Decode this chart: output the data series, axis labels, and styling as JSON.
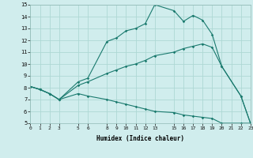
{
  "xlabel": "Humidex (Indice chaleur)",
  "background_color": "#d0eded",
  "grid_color": "#aed8d4",
  "line_color": "#1a7a6e",
  "line1_x": [
    0,
    1,
    2,
    3,
    5,
    6,
    8,
    9,
    10,
    11,
    12,
    13,
    15,
    16,
    17,
    18,
    19,
    20,
    22,
    23
  ],
  "line1_y": [
    8.1,
    7.85,
    7.5,
    7.0,
    8.5,
    8.8,
    11.9,
    12.2,
    12.8,
    13.0,
    13.4,
    15.0,
    14.5,
    13.6,
    14.1,
    13.7,
    12.5,
    9.8,
    7.3,
    5.0
  ],
  "line2_x": [
    0,
    1,
    2,
    3,
    5,
    6,
    8,
    9,
    10,
    11,
    12,
    13,
    15,
    16,
    17,
    18,
    19,
    20,
    22,
    23
  ],
  "line2_y": [
    8.1,
    7.85,
    7.5,
    7.0,
    8.2,
    8.5,
    9.2,
    9.5,
    9.8,
    10.0,
    10.3,
    10.7,
    11.0,
    11.3,
    11.5,
    11.7,
    11.4,
    9.8,
    7.3,
    5.0
  ],
  "line3_x": [
    0,
    1,
    2,
    3,
    5,
    6,
    8,
    9,
    10,
    11,
    12,
    13,
    15,
    16,
    17,
    18,
    19,
    20,
    22,
    23
  ],
  "line3_y": [
    8.1,
    7.85,
    7.5,
    7.0,
    7.5,
    7.3,
    7.0,
    6.8,
    6.6,
    6.4,
    6.2,
    6.0,
    5.9,
    5.7,
    5.6,
    5.5,
    5.4,
    5.0,
    5.0,
    5.0
  ],
  "xlim": [
    0,
    23
  ],
  "ylim": [
    5,
    15
  ],
  "yticks": [
    5,
    6,
    7,
    8,
    9,
    10,
    11,
    12,
    13,
    14,
    15
  ],
  "xticks": [
    0,
    1,
    2,
    3,
    5,
    6,
    8,
    9,
    10,
    11,
    12,
    13,
    15,
    16,
    17,
    18,
    19,
    20,
    21,
    22,
    23
  ]
}
